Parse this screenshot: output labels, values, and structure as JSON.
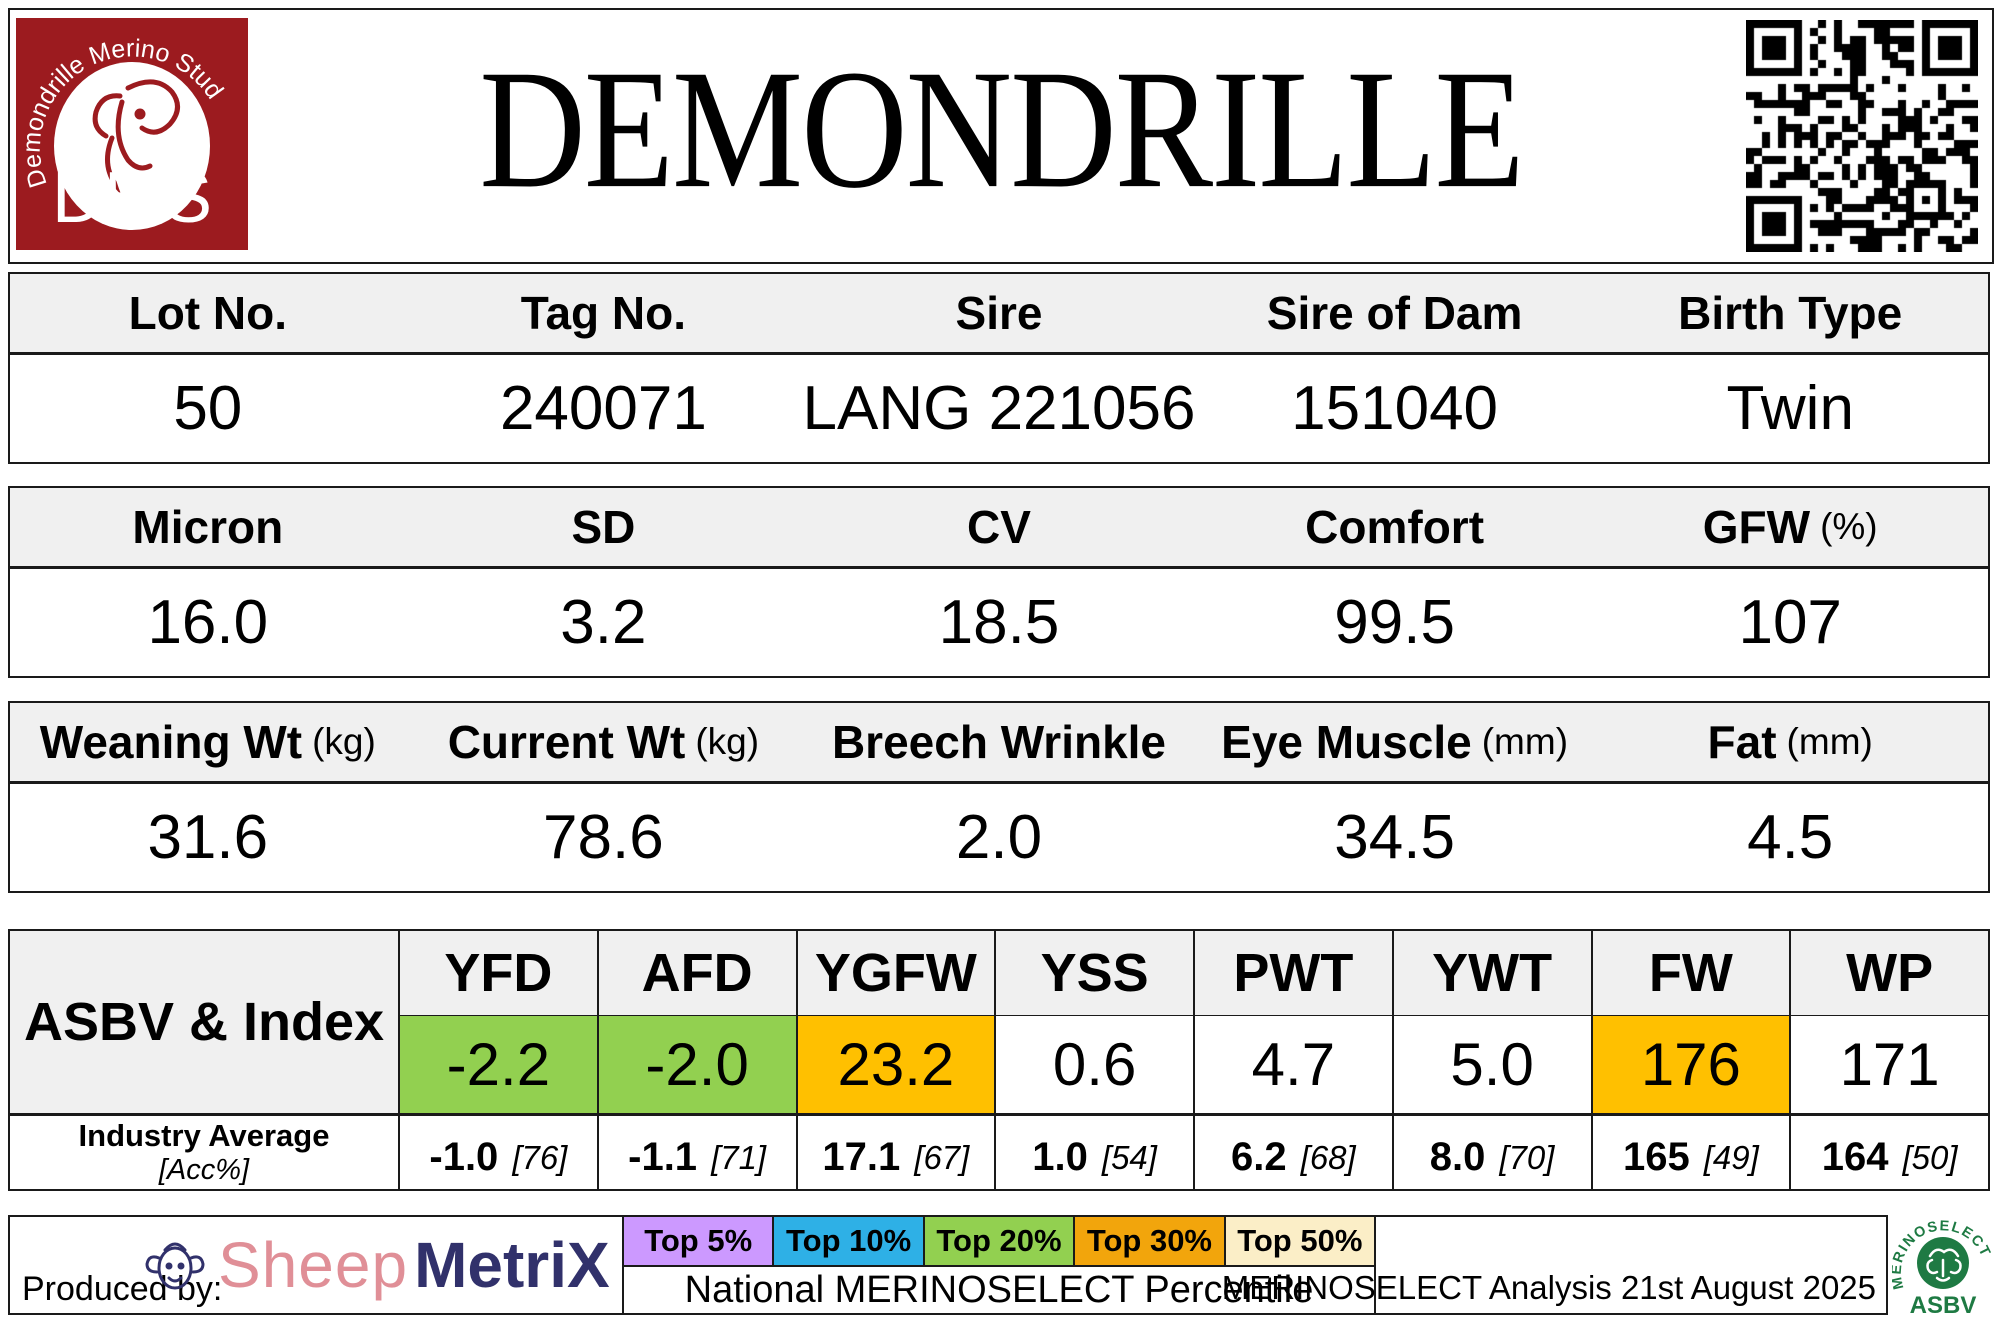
{
  "header": {
    "title": "DEMONDRILLE",
    "stud_logo": {
      "arc_text": "Demondrille Merino Stud",
      "acronym": "DMS",
      "color": "#9C1B1F"
    }
  },
  "tables": [
    {
      "name": "identity",
      "cells": [
        {
          "label": "Lot No.",
          "unit": "",
          "value": "50"
        },
        {
          "label": "Tag No.",
          "unit": "",
          "value": "240071"
        },
        {
          "label": "Sire",
          "unit": "",
          "value": "LANG 221056"
        },
        {
          "label": "Sire of Dam",
          "unit": "",
          "value": "151040"
        },
        {
          "label": "Birth Type",
          "unit": "",
          "value": "Twin"
        }
      ]
    },
    {
      "name": "wool",
      "cells": [
        {
          "label": "Micron",
          "unit": "",
          "value": "16.0"
        },
        {
          "label": "SD",
          "unit": "",
          "value": "3.2"
        },
        {
          "label": "CV",
          "unit": "",
          "value": "18.5"
        },
        {
          "label": "Comfort",
          "unit": "",
          "value": "99.5"
        },
        {
          "label": "GFW",
          "unit": "(%)",
          "value": "107"
        }
      ]
    },
    {
      "name": "body",
      "cells": [
        {
          "label": "Weaning Wt",
          "unit": "(kg)",
          "value": "31.6"
        },
        {
          "label": "Current Wt",
          "unit": "(kg)",
          "value": "78.6"
        },
        {
          "label": "Breech Wrinkle",
          "unit": "",
          "value": "2.0"
        },
        {
          "label": "Eye Muscle",
          "unit": "(mm)",
          "value": "34.5"
        },
        {
          "label": "Fat",
          "unit": "(mm)",
          "value": "4.5"
        }
      ]
    }
  ],
  "asbv": {
    "label": "ASBV & Index",
    "industry_label": "Industry Average",
    "acc_label": "[Acc%]",
    "highlight_green": "#92D050",
    "highlight_gold": "#FFC000",
    "columns": [
      {
        "trait": "YFD",
        "value": "-2.2",
        "bg": "#92D050",
        "industry": "-1.0",
        "acc": "[76]"
      },
      {
        "trait": "AFD",
        "value": "-2.0",
        "bg": "#92D050",
        "industry": "-1.1",
        "acc": "[71]"
      },
      {
        "trait": "YGFW",
        "value": "23.2",
        "bg": "#FFC000",
        "industry": "17.1",
        "acc": "[67]"
      },
      {
        "trait": "YSS",
        "value": "0.6",
        "bg": "#FFFFFF",
        "industry": "1.0",
        "acc": "[54]"
      },
      {
        "trait": "PWT",
        "value": "4.7",
        "bg": "#FFFFFF",
        "industry": "6.2",
        "acc": "[68]"
      },
      {
        "trait": "YWT",
        "value": "5.0",
        "bg": "#FFFFFF",
        "industry": "8.0",
        "acc": "[70]"
      },
      {
        "trait": "FW",
        "value": "176",
        "bg": "#FFC000",
        "industry": "165",
        "acc": "[49]"
      },
      {
        "trait": "WP",
        "value": "171",
        "bg": "#FFFFFF",
        "industry": "164",
        "acc": "[50]"
      }
    ]
  },
  "footer": {
    "produced_by": "Produced by:",
    "sheepmetrix": {
      "part1": "Sheep",
      "part2": "MetriX",
      "color1": "#E08F97",
      "color2": "#31316B"
    },
    "legend": [
      {
        "label": "Top 5%",
        "color": "#CC99FF"
      },
      {
        "label": "Top 10%",
        "color": "#2EB0E6"
      },
      {
        "label": "Top 20%",
        "color": "#92D050"
      },
      {
        "label": "Top 30%",
        "color": "#F2A50C"
      },
      {
        "label": "Top 50%",
        "color": "#FBEEC7"
      }
    ],
    "legend_caption": "National MERINOSELECT Percentile",
    "analysis_note": "MERINOSELECT Analysis 21st August 2025",
    "merinoselect_logo": {
      "arc_text": "MERINOSELECT",
      "sub_text": "ASBV",
      "color": "#1E7A43"
    }
  }
}
